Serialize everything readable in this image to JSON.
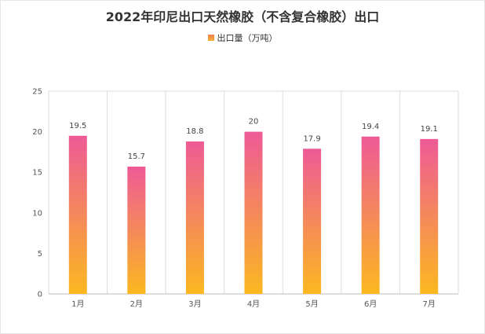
{
  "chart_data": {
    "type": "bar",
    "title": "2022年印尼出口天然橡胶（不含复合橡胶）出口",
    "categories": [
      "1月",
      "2月",
      "3月",
      "4月",
      "5月",
      "6月",
      "7月"
    ],
    "series": [
      {
        "name": "出口量（万吨）",
        "values": [
          19.5,
          15.7,
          18.8,
          20,
          17.9,
          19.4,
          19.1
        ]
      }
    ],
    "ylim": [
      0,
      25
    ],
    "yticks": [
      0,
      5,
      10,
      15,
      20,
      25
    ],
    "grid": {
      "vertical": true,
      "horizontal": false
    },
    "legend_position": "top-center",
    "colors": {
      "bar_top": "#ee5a96",
      "bar_bottom": "#fbb820",
      "grid": "#dddddd"
    }
  }
}
